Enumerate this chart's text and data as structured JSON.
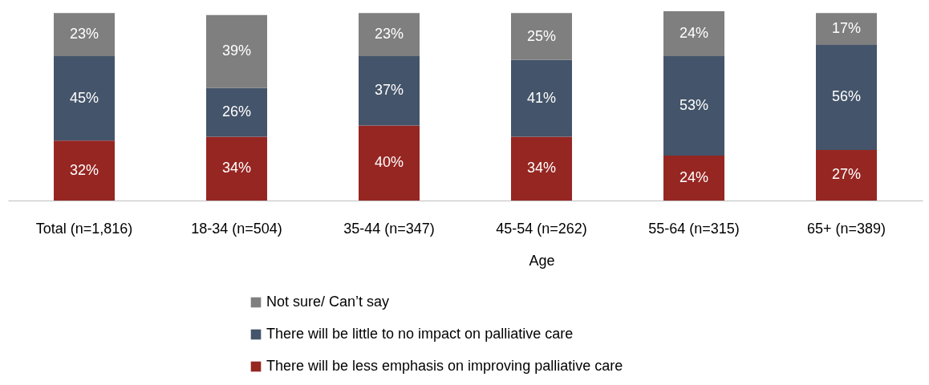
{
  "chart_data": {
    "type": "bar",
    "stacked": true,
    "categories": [
      "Total (n=1,816)",
      "18-34 (n=504)",
      "35-44 (n=347)",
      "45-54 (n=262)",
      "55-64 (n=315)",
      "65+ (n=389)"
    ],
    "xlabel": "Age",
    "ylim": [
      0,
      101
    ],
    "tick_labels": "x",
    "legend": "bottom",
    "series": [
      {
        "name": "There will be less emphasis on improving palliative care",
        "color": "#962622",
        "values": [
          32,
          34,
          40,
          34,
          24,
          27
        ],
        "value_labels": [
          "32%",
          "34%",
          "40%",
          "34%",
          "24%",
          "27%"
        ]
      },
      {
        "name": "There will be little to no impact on palliative care",
        "color": "#44546a",
        "values": [
          45,
          26,
          37,
          41,
          53,
          56
        ],
        "value_labels": [
          "45%",
          "26%",
          "37%",
          "41%",
          "53%",
          "56%"
        ]
      },
      {
        "name": "Not sure/ Can’t say",
        "color": "#7f7f7f",
        "values": [
          23,
          39,
          23,
          25,
          24,
          17
        ],
        "value_labels": [
          "23%",
          "39%",
          "23%",
          "25%",
          "24%",
          "17%"
        ]
      }
    ]
  }
}
